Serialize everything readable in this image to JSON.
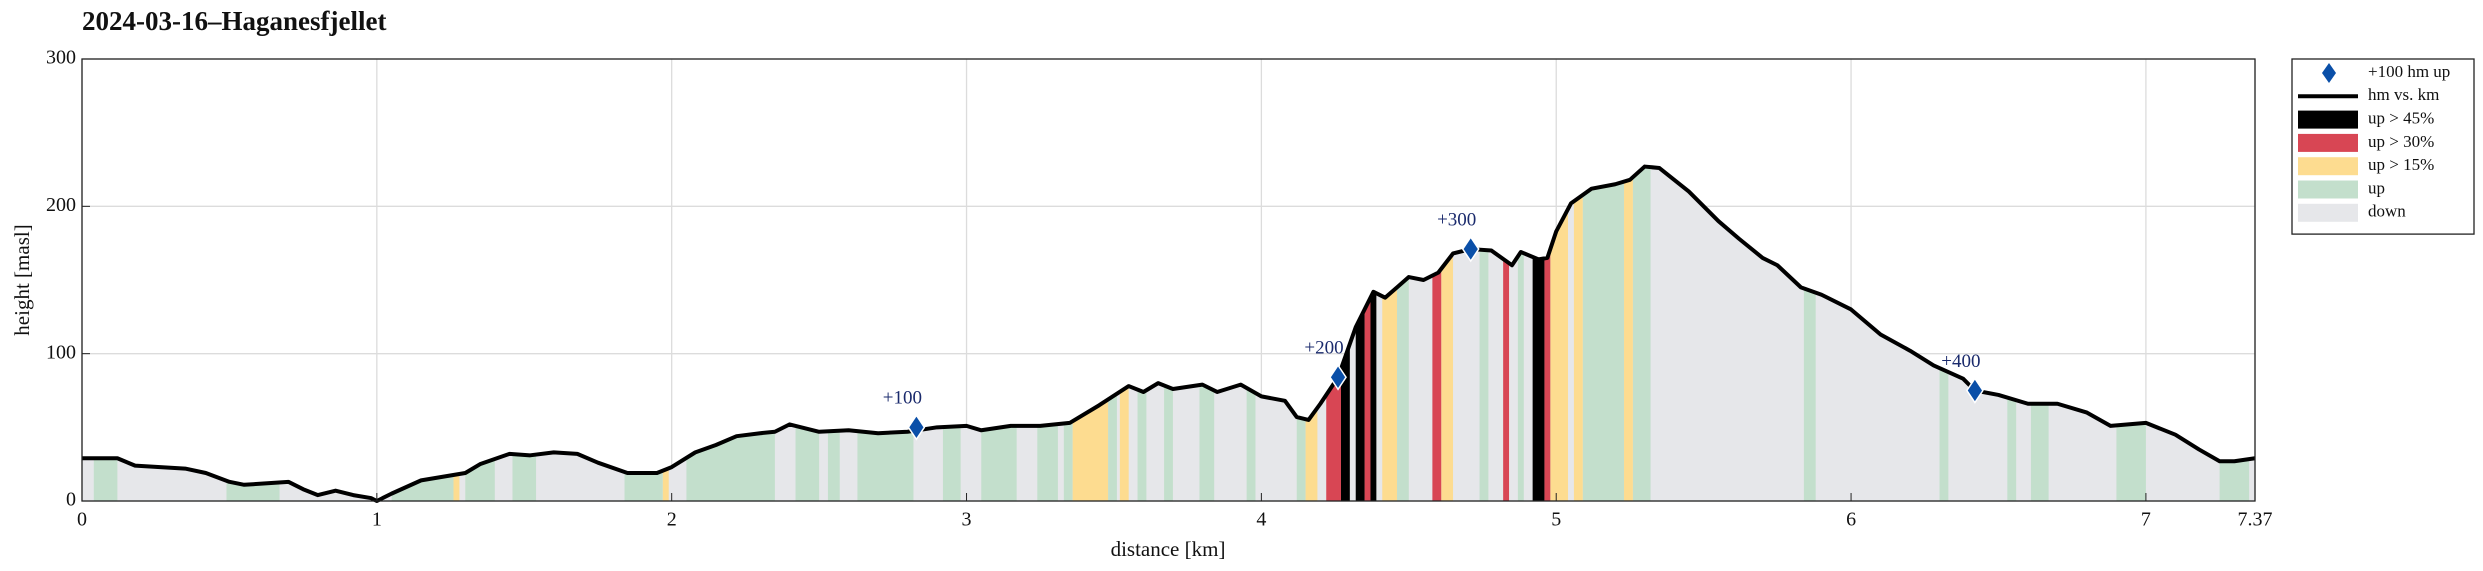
{
  "chart_data": {
    "type": "area",
    "title": "2024-03-16–Haganesfjellet",
    "xlabel": "distance [km]",
    "ylabel": "height [masl]",
    "xlim": [
      0,
      7.37
    ],
    "ylim": [
      0,
      300
    ],
    "xticks": [
      0,
      1,
      2,
      3,
      4,
      5,
      6,
      7,
      7.37
    ],
    "yticks": [
      0,
      100,
      200,
      300
    ],
    "grid": true,
    "legend": "outside right",
    "markers": {
      "name": "+100 hm up",
      "color": "#0a4fa8",
      "x": [
        2.83,
        4.26,
        4.71,
        6.42
      ],
      "y": [
        50,
        84,
        171,
        75
      ],
      "labels": [
        "+100",
        "+200",
        "+300",
        "+400"
      ]
    },
    "profile": {
      "name": "hm vs. km",
      "color": "#000000",
      "x": [
        0,
        0.12,
        0.18,
        0.35,
        0.42,
        0.5,
        0.55,
        0.7,
        0.75,
        0.8,
        0.86,
        0.92,
        0.98,
        1.0,
        1.05,
        1.15,
        1.3,
        1.35,
        1.45,
        1.52,
        1.6,
        1.68,
        1.75,
        1.85,
        1.95,
        2.0,
        2.08,
        2.15,
        2.22,
        2.3,
        2.35,
        2.4,
        2.5,
        2.6,
        2.7,
        2.8,
        2.9,
        3.0,
        3.05,
        3.15,
        3.25,
        3.35,
        3.45,
        3.55,
        3.6,
        3.65,
        3.7,
        3.8,
        3.85,
        3.93,
        4.0,
        4.08,
        4.12,
        4.16,
        4.2,
        4.26,
        4.32,
        4.38,
        4.42,
        4.5,
        4.55,
        4.6,
        4.65,
        4.71,
        4.78,
        4.85,
        4.88,
        4.94,
        4.97,
        5.0,
        5.05,
        5.12,
        5.2,
        5.25,
        5.3,
        5.35,
        5.45,
        5.55,
        5.62,
        5.7,
        5.75,
        5.83,
        5.9,
        6.0,
        6.1,
        6.2,
        6.28,
        6.38,
        6.42,
        6.5,
        6.6,
        6.7,
        6.8,
        6.88,
        7.0,
        7.1,
        7.18,
        7.25,
        7.3,
        7.37
      ],
      "values": [
        29,
        29,
        24,
        22,
        19,
        13,
        11,
        13,
        8,
        4,
        7,
        4,
        2,
        0,
        5,
        14,
        19,
        25,
        32,
        31,
        33,
        32,
        26,
        19,
        19,
        23,
        33,
        38,
        44,
        46,
        47,
        52,
        47,
        48,
        46,
        47,
        50,
        51,
        48,
        51,
        51,
        53,
        65,
        78,
        74,
        80,
        76,
        79,
        74,
        79,
        71,
        68,
        57,
        55,
        66,
        84,
        118,
        142,
        138,
        152,
        150,
        155,
        168,
        171,
        170,
        160,
        169,
        164,
        165,
        183,
        202,
        212,
        215,
        218,
        227,
        226,
        210,
        190,
        178,
        165,
        160,
        145,
        140,
        130,
        113,
        102,
        92,
        83,
        75,
        72,
        66,
        66,
        60,
        51,
        53,
        45,
        35,
        27,
        27,
        29
      ]
    },
    "bands": [
      {
        "name": "up > 45%",
        "color": "#000000",
        "ranges": [
          [
            4.27,
            4.3
          ],
          [
            4.32,
            4.35
          ],
          [
            4.37,
            4.39
          ],
          [
            4.92,
            4.96
          ]
        ]
      },
      {
        "name": "up > 30%",
        "color": "#d84654",
        "ranges": [
          [
            4.22,
            4.27
          ],
          [
            4.35,
            4.37
          ],
          [
            4.58,
            4.61
          ],
          [
            4.82,
            4.84
          ],
          [
            4.96,
            4.98
          ]
        ]
      },
      {
        "name": "up > 15%",
        "color": "#fddc90",
        "ranges": [
          [
            1.26,
            1.28
          ],
          [
            1.97,
            1.99
          ],
          [
            3.36,
            3.48
          ],
          [
            3.52,
            3.55
          ],
          [
            4.15,
            4.19
          ],
          [
            4.41,
            4.46
          ],
          [
            4.61,
            4.65
          ],
          [
            4.98,
            5.04
          ],
          [
            5.06,
            5.09
          ],
          [
            5.23,
            5.26
          ]
        ]
      },
      {
        "name": "up",
        "color": "#c3dfcc",
        "ranges": [
          [
            0.04,
            0.12
          ],
          [
            0.49,
            0.67
          ],
          [
            1.05,
            1.26
          ],
          [
            1.3,
            1.4
          ],
          [
            1.46,
            1.54
          ],
          [
            1.84,
            1.97
          ],
          [
            2.05,
            2.35
          ],
          [
            2.42,
            2.5
          ],
          [
            2.53,
            2.57
          ],
          [
            2.63,
            2.82
          ],
          [
            2.92,
            2.98
          ],
          [
            3.05,
            3.17
          ],
          [
            3.24,
            3.31
          ],
          [
            3.33,
            3.36
          ],
          [
            3.48,
            3.51
          ],
          [
            3.58,
            3.61
          ],
          [
            3.67,
            3.7
          ],
          [
            3.79,
            3.84
          ],
          [
            3.95,
            3.98
          ],
          [
            4.12,
            4.15
          ],
          [
            4.46,
            4.5
          ],
          [
            4.74,
            4.77
          ],
          [
            4.87,
            4.89
          ],
          [
            5.09,
            5.23
          ],
          [
            5.26,
            5.32
          ],
          [
            5.84,
            5.88
          ],
          [
            6.3,
            6.33
          ],
          [
            6.53,
            6.56
          ],
          [
            6.61,
            6.67
          ],
          [
            6.9,
            7.0
          ],
          [
            7.25,
            7.35
          ]
        ]
      },
      {
        "name": "down",
        "color": "#e6e7ea",
        "ranges": []
      }
    ]
  }
}
